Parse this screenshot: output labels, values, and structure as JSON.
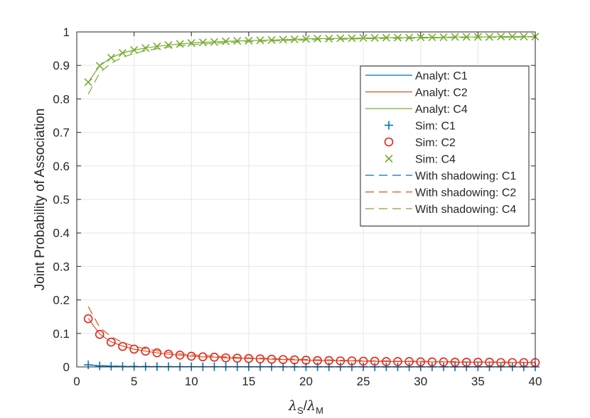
{
  "chart_data": {
    "type": "line",
    "title": "",
    "xlabel": {
      "main": "λ",
      "sub1": "S",
      "slash": "/",
      "main2": "λ",
      "sub2": "M"
    },
    "ylabel": "Joint Probability of Association",
    "xlim": [
      0,
      40
    ],
    "ylim": [
      0,
      1
    ],
    "xticks": [
      0,
      5,
      10,
      15,
      20,
      25,
      30,
      35,
      40
    ],
    "yticks": [
      0,
      0.1,
      0.2,
      0.3,
      0.4,
      0.5,
      0.6,
      0.7,
      0.8,
      0.9,
      1
    ],
    "ytick_labels": [
      "0",
      "0.1",
      "0.2",
      "0.3",
      "0.4",
      "0.5",
      "0.6",
      "0.7",
      "0.8",
      "0.9",
      "1"
    ],
    "grid": true,
    "legend_position": "right",
    "x": [
      1,
      2,
      3,
      4,
      5,
      6,
      7,
      8,
      9,
      10,
      11,
      12,
      13,
      14,
      15,
      16,
      17,
      18,
      19,
      20,
      21,
      22,
      23,
      24,
      25,
      26,
      27,
      28,
      29,
      30,
      31,
      32,
      33,
      34,
      35,
      36,
      37,
      38,
      39,
      40
    ],
    "colors": {
      "c1": "#0072BD",
      "c2": "#D95319",
      "c4": "#77AC30",
      "sim_c2": "#E8201F"
    },
    "series": [
      {
        "name": "Analyt: C1",
        "style": "solid",
        "color_key": "c1",
        "values": [
          0.006,
          0.003,
          0.002,
          0.0015,
          0.0012,
          0.001,
          0.0009,
          0.0008,
          0.0007,
          0.0006,
          0.0006,
          0.0005,
          0.0005,
          0.0005,
          0.0004,
          0.0004,
          0.0004,
          0.0004,
          0.0003,
          0.0003,
          0.0003,
          0.0003,
          0.0003,
          0.0003,
          0.0003,
          0.0002,
          0.0002,
          0.0002,
          0.0002,
          0.0002,
          0.0002,
          0.0002,
          0.0002,
          0.0002,
          0.0002,
          0.0002,
          0.0002,
          0.0002,
          0.0001,
          0.0001
        ]
      },
      {
        "name": "Analyt: C2",
        "style": "solid",
        "color_key": "c2",
        "values": [
          0.145,
          0.098,
          0.075,
          0.062,
          0.053,
          0.047,
          0.042,
          0.038,
          0.035,
          0.032,
          0.03,
          0.029,
          0.027,
          0.026,
          0.025,
          0.024,
          0.023,
          0.022,
          0.021,
          0.02,
          0.019,
          0.019,
          0.018,
          0.018,
          0.017,
          0.017,
          0.016,
          0.016,
          0.016,
          0.015,
          0.015,
          0.015,
          0.014,
          0.014,
          0.014,
          0.014,
          0.013,
          0.013,
          0.013,
          0.013
        ]
      },
      {
        "name": "Analyt: C4",
        "style": "solid",
        "color_key": "c4",
        "values": [
          0.85,
          0.899,
          0.923,
          0.937,
          0.946,
          0.952,
          0.957,
          0.961,
          0.964,
          0.967,
          0.969,
          0.97,
          0.972,
          0.973,
          0.974,
          0.975,
          0.976,
          0.977,
          0.978,
          0.979,
          0.98,
          0.98,
          0.981,
          0.981,
          0.982,
          0.982,
          0.983,
          0.983,
          0.983,
          0.984,
          0.984,
          0.984,
          0.985,
          0.985,
          0.985,
          0.985,
          0.986,
          0.986,
          0.986,
          0.986
        ]
      },
      {
        "name": "Sim: C1",
        "style": "marker-plus",
        "color_key": "c1",
        "values": [
          0.006,
          0.003,
          0.002,
          0.0015,
          0.0012,
          0.001,
          0.0009,
          0.0008,
          0.0007,
          0.0006,
          0.0006,
          0.0005,
          0.0005,
          0.0005,
          0.0004,
          0.0004,
          0.0004,
          0.0004,
          0.0003,
          0.0003,
          0.0003,
          0.0003,
          0.0003,
          0.0003,
          0.0003,
          0.0002,
          0.0002,
          0.0002,
          0.0002,
          0.0002,
          0.0002,
          0.0002,
          0.0002,
          0.0002,
          0.0002,
          0.0002,
          0.0002,
          0.0002,
          0.0001,
          0.0001
        ]
      },
      {
        "name": "Sim: C2",
        "style": "marker-circle",
        "color_key": "sim_c2",
        "values": [
          0.144,
          0.097,
          0.074,
          0.061,
          0.053,
          0.047,
          0.042,
          0.038,
          0.035,
          0.032,
          0.03,
          0.029,
          0.027,
          0.026,
          0.025,
          0.024,
          0.023,
          0.022,
          0.021,
          0.02,
          0.019,
          0.019,
          0.018,
          0.018,
          0.017,
          0.017,
          0.016,
          0.016,
          0.016,
          0.015,
          0.015,
          0.015,
          0.014,
          0.014,
          0.014,
          0.014,
          0.013,
          0.013,
          0.013,
          0.013
        ]
      },
      {
        "name": "Sim: C4",
        "style": "marker-x",
        "color_key": "c4",
        "values": [
          0.85,
          0.899,
          0.923,
          0.937,
          0.946,
          0.952,
          0.957,
          0.961,
          0.964,
          0.967,
          0.969,
          0.97,
          0.972,
          0.973,
          0.974,
          0.975,
          0.976,
          0.977,
          0.978,
          0.979,
          0.98,
          0.98,
          0.981,
          0.981,
          0.982,
          0.982,
          0.983,
          0.983,
          0.983,
          0.984,
          0.984,
          0.984,
          0.985,
          0.985,
          0.985,
          0.985,
          0.986,
          0.986,
          0.986,
          0.986
        ]
      },
      {
        "name": "With shadowing: C1",
        "style": "dashed",
        "color_key": "c1",
        "values": [
          0.006,
          0.004,
          0.003,
          0.002,
          0.0015,
          0.0013,
          0.0011,
          0.001,
          0.0009,
          0.0008,
          0.0007,
          0.0007,
          0.0006,
          0.0006,
          0.0005,
          0.0005,
          0.0005,
          0.0004,
          0.0004,
          0.0004,
          0.0004,
          0.0004,
          0.0003,
          0.0003,
          0.0003,
          0.0003,
          0.0003,
          0.0003,
          0.0003,
          0.0003,
          0.0002,
          0.0002,
          0.0002,
          0.0002,
          0.0002,
          0.0002,
          0.0002,
          0.0002,
          0.0002,
          0.0002
        ]
      },
      {
        "name": "With shadowing: C2",
        "style": "dashed",
        "color_key": "c2",
        "values": [
          0.18,
          0.118,
          0.09,
          0.073,
          0.062,
          0.054,
          0.048,
          0.043,
          0.039,
          0.036,
          0.034,
          0.032,
          0.03,
          0.028,
          0.027,
          0.026,
          0.025,
          0.024,
          0.023,
          0.022,
          0.021,
          0.021,
          0.02,
          0.019,
          0.019,
          0.018,
          0.018,
          0.017,
          0.017,
          0.017,
          0.016,
          0.016,
          0.016,
          0.015,
          0.015,
          0.015,
          0.015,
          0.014,
          0.014,
          0.014
        ]
      },
      {
        "name": "With shadowing: C4",
        "style": "dashed",
        "color_key": "c4",
        "values": [
          0.814,
          0.878,
          0.907,
          0.924,
          0.936,
          0.944,
          0.95,
          0.955,
          0.959,
          0.962,
          0.964,
          0.966,
          0.968,
          0.97,
          0.971,
          0.972,
          0.973,
          0.974,
          0.975,
          0.976,
          0.977,
          0.978,
          0.978,
          0.979,
          0.98,
          0.98,
          0.981,
          0.981,
          0.981,
          0.982,
          0.982,
          0.983,
          0.983,
          0.983,
          0.984,
          0.984,
          0.984,
          0.984,
          0.985,
          0.985
        ]
      }
    ]
  }
}
